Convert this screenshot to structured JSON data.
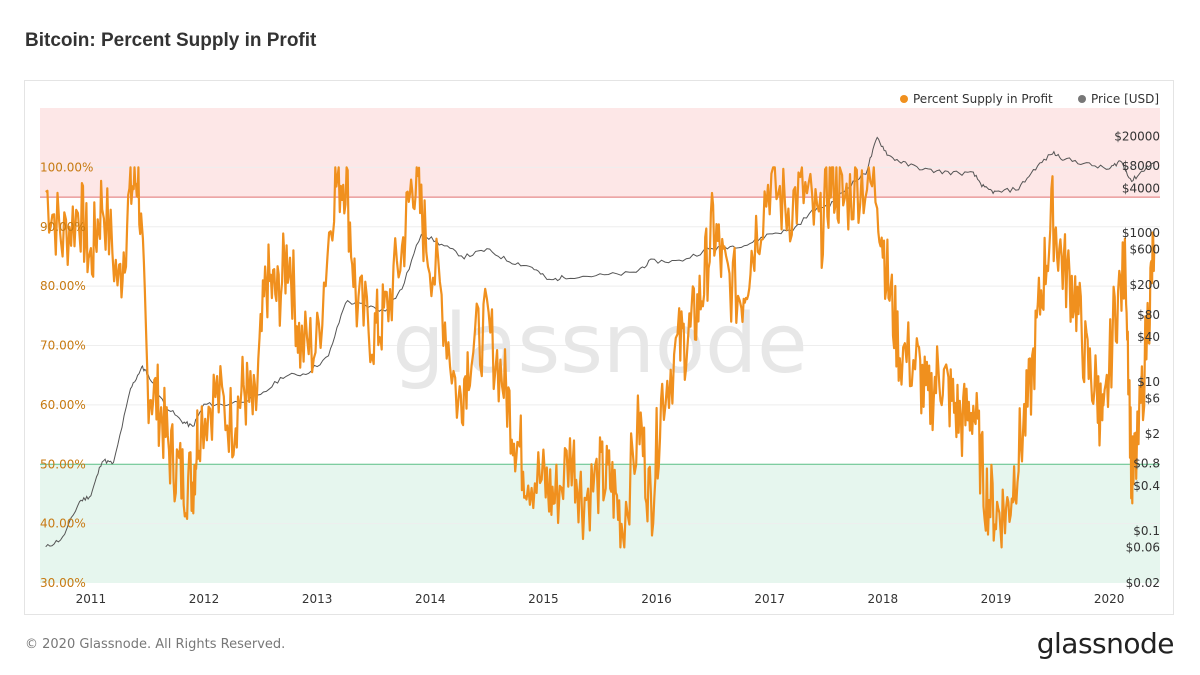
{
  "title": "Bitcoin: Percent Supply in Profit",
  "footer": {
    "copyright": "© 2020 Glassnode. All Rights Reserved.",
    "logo_text": "glassnode"
  },
  "watermark": "glassnode",
  "colors": {
    "profit": "#f0901e",
    "price": "#555555",
    "upper_band": "#fde7e7",
    "upper_line": "#e07070",
    "lower_band": "#e6f6ee",
    "lower_line": "#5cbf85",
    "grid": "#eeeeee"
  },
  "chart_data": {
    "type": "line",
    "title": "Bitcoin: Percent Supply in Profit",
    "x_axis": {
      "type": "time",
      "ticks": [
        "2011",
        "2012",
        "2013",
        "2014",
        "2015",
        "2016",
        "2017",
        "2018",
        "2019",
        "2020"
      ]
    },
    "y_left": {
      "range": [
        30,
        110
      ],
      "unit": "%",
      "ticks": [
        "100.00%",
        "90.00%",
        "80.00%",
        "70.00%",
        "60.00%",
        "50.00%",
        "40.00%",
        "30.00%"
      ]
    },
    "y_right": {
      "scale": "log",
      "ticks": [
        "$20000",
        "$8000",
        "$4000",
        "$1000",
        "$600",
        "$200",
        "$80",
        "$40",
        "$10",
        "$6",
        "$2",
        "$0.8",
        "$0.4",
        "$0.1",
        "$0.06",
        "$0.02"
      ]
    },
    "bands": [
      {
        "from": 95,
        "to": 110,
        "color": "#fde7e7"
      },
      {
        "from": 30,
        "to": 50,
        "color": "#e6f6ee"
      }
    ],
    "legend": {
      "position": "top-right",
      "items": [
        "Percent Supply in Profit",
        "Price [USD]"
      ]
    },
    "series": [
      {
        "name": "Percent Supply in Profit",
        "axis": "left",
        "color": "#f0901e",
        "points": [
          [
            2010.6,
            96
          ],
          [
            2010.75,
            88
          ],
          [
            2010.9,
            93
          ],
          [
            2011.0,
            84
          ],
          [
            2011.1,
            95
          ],
          [
            2011.25,
            80
          ],
          [
            2011.35,
            96
          ],
          [
            2011.42,
            99
          ],
          [
            2011.5,
            64
          ],
          [
            2011.6,
            60
          ],
          [
            2011.7,
            52
          ],
          [
            2011.8,
            48
          ],
          [
            2011.9,
            47
          ],
          [
            2011.95,
            57
          ],
          [
            2012.1,
            62
          ],
          [
            2012.25,
            57
          ],
          [
            2012.35,
            63
          ],
          [
            2012.45,
            58
          ],
          [
            2012.55,
            81
          ],
          [
            2012.65,
            78
          ],
          [
            2012.75,
            86
          ],
          [
            2012.85,
            70
          ],
          [
            2013.0,
            70
          ],
          [
            2013.15,
            97
          ],
          [
            2013.25,
            99
          ],
          [
            2013.35,
            77
          ],
          [
            2013.5,
            72
          ],
          [
            2013.6,
            75
          ],
          [
            2013.75,
            86
          ],
          [
            2013.85,
            99
          ],
          [
            2013.95,
            89
          ],
          [
            2014.1,
            78
          ],
          [
            2014.25,
            60
          ],
          [
            2014.35,
            69
          ],
          [
            2014.5,
            73
          ],
          [
            2014.65,
            64
          ],
          [
            2014.75,
            55
          ],
          [
            2014.85,
            49
          ],
          [
            2015.0,
            47
          ],
          [
            2015.1,
            44
          ],
          [
            2015.25,
            52
          ],
          [
            2015.35,
            44
          ],
          [
            2015.5,
            48
          ],
          [
            2015.6,
            47
          ],
          [
            2015.7,
            40
          ],
          [
            2015.85,
            57
          ],
          [
            2015.95,
            43
          ],
          [
            2016.05,
            62
          ],
          [
            2016.2,
            70
          ],
          [
            2016.3,
            72
          ],
          [
            2016.4,
            79
          ],
          [
            2016.5,
            90
          ],
          [
            2016.6,
            82
          ],
          [
            2016.75,
            78
          ],
          [
            2016.85,
            87
          ],
          [
            2017.0,
            98
          ],
          [
            2017.15,
            93
          ],
          [
            2017.3,
            96
          ],
          [
            2017.45,
            89
          ],
          [
            2017.55,
            99
          ],
          [
            2017.65,
            94
          ],
          [
            2017.8,
            98
          ],
          [
            2017.95,
            96
          ],
          [
            2018.05,
            80
          ],
          [
            2018.15,
            69
          ],
          [
            2018.3,
            67
          ],
          [
            2018.4,
            60
          ],
          [
            2018.5,
            66
          ],
          [
            2018.6,
            61
          ],
          [
            2018.7,
            57
          ],
          [
            2018.8,
            60
          ],
          [
            2018.9,
            46
          ],
          [
            2019.0,
            42
          ],
          [
            2019.1,
            42
          ],
          [
            2019.2,
            52
          ],
          [
            2019.3,
            62
          ],
          [
            2019.4,
            79
          ],
          [
            2019.5,
            92
          ],
          [
            2019.6,
            83
          ],
          [
            2019.7,
            79
          ],
          [
            2019.8,
            67
          ],
          [
            2019.9,
            62
          ],
          [
            2019.95,
            55
          ],
          [
            2020.05,
            76
          ],
          [
            2020.15,
            83
          ],
          [
            2020.2,
            47
          ],
          [
            2020.25,
            52
          ],
          [
            2020.35,
            76
          ],
          [
            2020.4,
            87
          ]
        ]
      },
      {
        "name": "Price [USD]",
        "axis": "right",
        "color": "#555555",
        "points": [
          [
            2010.6,
            0.06
          ],
          [
            2010.75,
            0.08
          ],
          [
            2010.9,
            0.25
          ],
          [
            2011.0,
            0.3
          ],
          [
            2011.1,
            0.9
          ],
          [
            2011.2,
            0.8
          ],
          [
            2011.35,
            8
          ],
          [
            2011.45,
            16
          ],
          [
            2011.5,
            13
          ],
          [
            2011.65,
            5
          ],
          [
            2011.8,
            3
          ],
          [
            2011.9,
            2.5
          ],
          [
            2012.0,
            5
          ],
          [
            2012.2,
            5
          ],
          [
            2012.5,
            6.5
          ],
          [
            2012.7,
            12
          ],
          [
            2012.9,
            13
          ],
          [
            2013.1,
            22
          ],
          [
            2013.25,
            120
          ],
          [
            2013.4,
            110
          ],
          [
            2013.6,
            90
          ],
          [
            2013.75,
            180
          ],
          [
            2013.92,
            1000
          ],
          [
            2014.1,
            700
          ],
          [
            2014.3,
            480
          ],
          [
            2014.5,
            600
          ],
          [
            2014.7,
            420
          ],
          [
            2014.9,
            350
          ],
          [
            2015.05,
            230
          ],
          [
            2015.2,
            260
          ],
          [
            2015.5,
            270
          ],
          [
            2015.8,
            290
          ],
          [
            2015.95,
            420
          ],
          [
            2016.2,
            420
          ],
          [
            2016.45,
            600
          ],
          [
            2016.6,
            650
          ],
          [
            2016.8,
            700
          ],
          [
            2017.0,
            980
          ],
          [
            2017.2,
            1100
          ],
          [
            2017.4,
            2100
          ],
          [
            2017.55,
            2500
          ],
          [
            2017.7,
            4300
          ],
          [
            2017.85,
            6500
          ],
          [
            2017.95,
            19000
          ],
          [
            2018.05,
            11000
          ],
          [
            2018.2,
            8500
          ],
          [
            2018.4,
            7000
          ],
          [
            2018.6,
            6500
          ],
          [
            2018.8,
            6300
          ],
          [
            2018.9,
            4000
          ],
          [
            2019.0,
            3500
          ],
          [
            2019.2,
            4000
          ],
          [
            2019.35,
            7500
          ],
          [
            2019.5,
            12000
          ],
          [
            2019.6,
            10000
          ],
          [
            2019.8,
            8500
          ],
          [
            2020.0,
            7200
          ],
          [
            2020.1,
            9500
          ],
          [
            2020.2,
            5000
          ],
          [
            2020.3,
            7000
          ],
          [
            2020.4,
            9000
          ]
        ]
      }
    ]
  }
}
